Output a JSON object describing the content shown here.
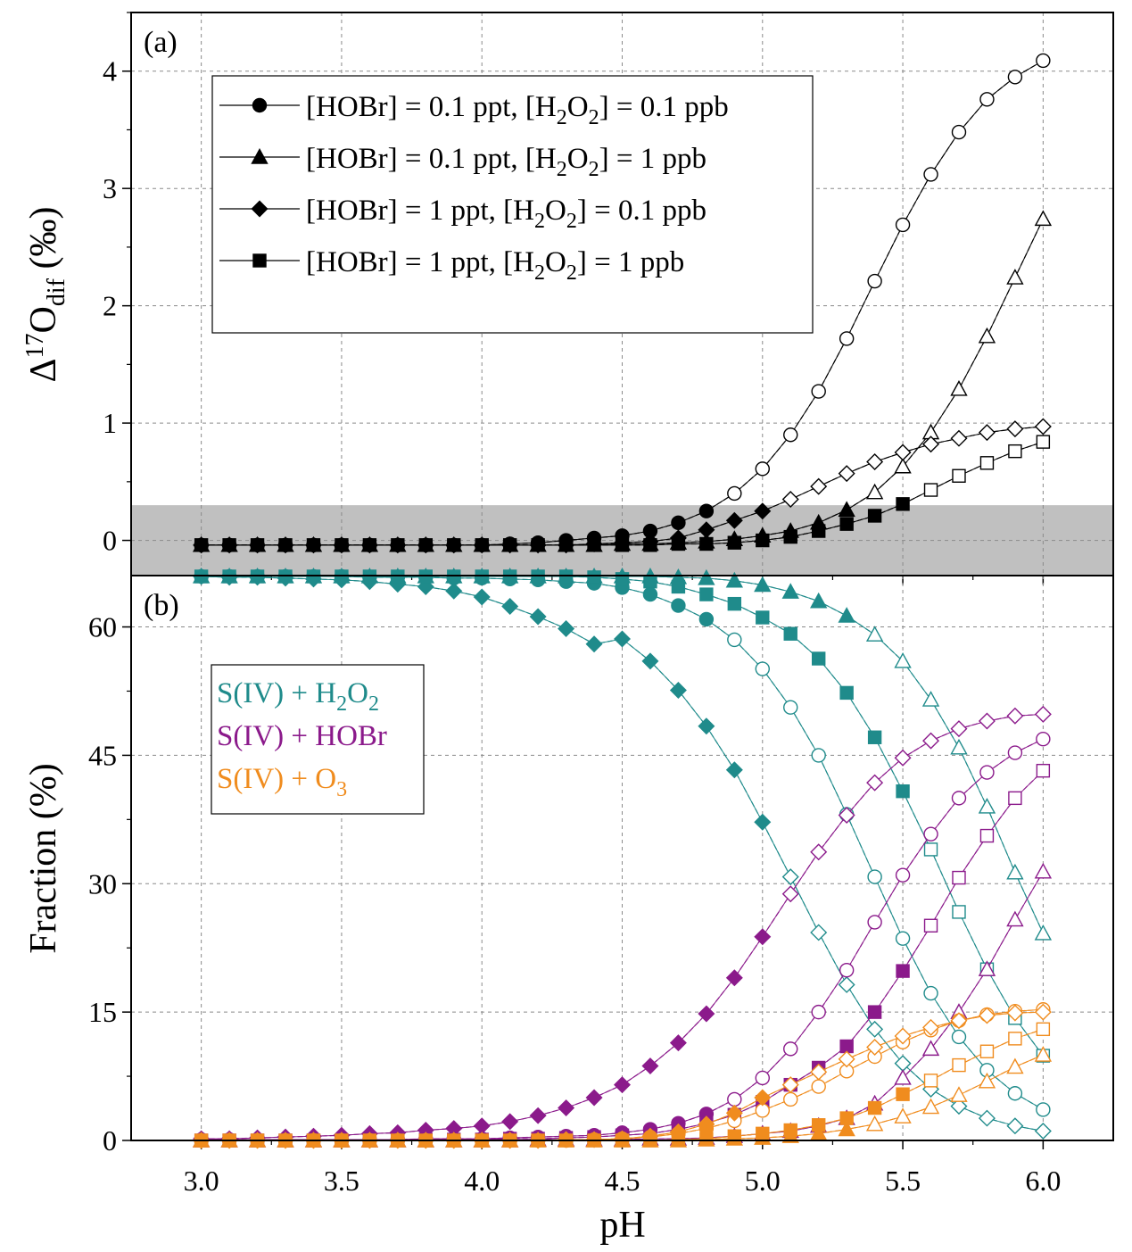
{
  "figure": {
    "x_axis_label": "pH",
    "x_ticks": [
      "3.0",
      "3.5",
      "4.0",
      "4.5",
      "5.0",
      "5.5",
      "6.0"
    ]
  },
  "chart_data": [
    {
      "type": "line",
      "panel_label": "(a)",
      "ylabel": "Δ17Odif (‰)",
      "ylabel_parts": {
        "delta": "Δ",
        "sup": "17",
        "base": "O",
        "sub": "dif",
        "unit": " (‰)"
      },
      "xlim": [
        2.75,
        6.25
      ],
      "ylim": [
        -0.3,
        4.5
      ],
      "x_ticks": [
        3.0,
        3.5,
        4.0,
        4.5,
        5.0,
        5.5,
        6.0
      ],
      "y_ticks": [
        0,
        1,
        2,
        3,
        4
      ],
      "y_tick_labels": [
        "0",
        "1",
        "2",
        "3",
        "4"
      ],
      "grid": true,
      "shaded_band": {
        "y_min": -0.3,
        "y_max": 0.3,
        "color": "#c0c0c0"
      },
      "legend_position": "upper-left",
      "x": [
        3.0,
        3.1,
        3.2,
        3.3,
        3.4,
        3.5,
        3.6,
        3.7,
        3.8,
        3.9,
        4.0,
        4.1,
        4.2,
        4.3,
        4.4,
        4.5,
        4.6,
        4.7,
        4.8,
        4.9,
        5.0,
        5.1,
        5.2,
        5.3,
        5.4,
        5.5,
        5.6,
        5.7,
        5.8,
        5.9,
        6.0
      ],
      "series": [
        {
          "name": "[HOBr] = 0.1 ppt, [H2O2] = 0.1 ppb",
          "legend": [
            "[HOBr] = 0.1 ppt, [H",
            "2",
            "O",
            "2",
            "] = 0.1 ppb"
          ],
          "marker": "circle",
          "filled_up_to_x": 4.8,
          "values": [
            -0.04,
            -0.04,
            -0.04,
            -0.04,
            -0.04,
            -0.04,
            -0.04,
            -0.04,
            -0.04,
            -0.04,
            -0.04,
            -0.03,
            -0.02,
            0.0,
            0.02,
            0.04,
            0.08,
            0.15,
            0.25,
            0.4,
            0.61,
            0.9,
            1.27,
            1.72,
            2.21,
            2.69,
            3.12,
            3.48,
            3.76,
            3.95,
            4.09
          ]
        },
        {
          "name": "[HOBr] = 0.1 ppt, [H2O2] = 1 ppb",
          "legend": [
            "[HOBr] = 0.1 ppt, [H",
            "2",
            "O",
            "2",
            "] = 1 ppb"
          ],
          "marker": "triangle",
          "filled_up_to_x": 5.3,
          "values": [
            -0.04,
            -0.04,
            -0.04,
            -0.04,
            -0.04,
            -0.04,
            -0.04,
            -0.04,
            -0.04,
            -0.04,
            -0.04,
            -0.04,
            -0.04,
            -0.04,
            -0.04,
            -0.03,
            -0.03,
            -0.02,
            -0.01,
            0.01,
            0.04,
            0.08,
            0.15,
            0.26,
            0.41,
            0.63,
            0.92,
            1.29,
            1.74,
            2.24,
            2.74
          ]
        },
        {
          "name": "[HOBr] = 1 ppt, [H2O2] = 0.1 ppb",
          "legend": [
            "[HOBr] = 1 ppt, [H",
            "2",
            "O",
            "2",
            "] = 0.1 ppb"
          ],
          "marker": "diamond",
          "filled_up_to_x": 5.0,
          "values": [
            -0.04,
            -0.04,
            -0.04,
            -0.04,
            -0.04,
            -0.04,
            -0.04,
            -0.04,
            -0.04,
            -0.04,
            -0.04,
            -0.04,
            -0.04,
            -0.04,
            -0.03,
            -0.02,
            -0.01,
            0.02,
            0.09,
            0.17,
            0.25,
            0.35,
            0.46,
            0.57,
            0.67,
            0.75,
            0.82,
            0.87,
            0.92,
            0.95,
            0.97
          ]
        },
        {
          "name": "[HOBr] = 1 ppt, [H2O2] = 1 ppb",
          "legend": [
            "[HOBr] = 1 ppt, [H",
            "2",
            "O",
            "2",
            "] = 1 ppb"
          ],
          "marker": "square",
          "filled_up_to_x": 5.5,
          "values": [
            -0.04,
            -0.04,
            -0.04,
            -0.04,
            -0.04,
            -0.04,
            -0.04,
            -0.04,
            -0.04,
            -0.04,
            -0.04,
            -0.04,
            -0.04,
            -0.04,
            -0.04,
            -0.04,
            -0.04,
            -0.03,
            -0.03,
            -0.02,
            0.0,
            0.03,
            0.08,
            0.14,
            0.21,
            0.31,
            0.43,
            0.55,
            0.66,
            0.76,
            0.84
          ]
        }
      ]
    },
    {
      "type": "line",
      "panel_label": "(b)",
      "ylabel": "Fraction (%)",
      "xlim": [
        2.75,
        6.25
      ],
      "ylim": [
        0,
        66
      ],
      "x_ticks": [
        3.0,
        3.5,
        4.0,
        4.5,
        5.0,
        5.5,
        6.0
      ],
      "y_ticks": [
        0,
        15,
        30,
        45,
        60
      ],
      "y_tick_labels": [
        "0",
        "15",
        "30",
        "45",
        "60"
      ],
      "grid": true,
      "legend_position": "upper-left",
      "legend": [
        {
          "parts": [
            "S(IV) + H",
            "2",
            "O",
            "2",
            ""
          ],
          "color": "#1f8b8b"
        },
        {
          "parts": [
            "S(IV) + HOBr",
            "",
            "",
            "",
            ""
          ],
          "color": "#8b1a8b"
        },
        {
          "parts": [
            "S(IV) + O",
            "3",
            "",
            "",
            ""
          ],
          "color": "#f08c1e"
        }
      ],
      "colors": {
        "H2O2": "#1f8b8b",
        "HOBr": "#8b1a8b",
        "O3": "#f08c1e"
      },
      "x": [
        3.0,
        3.1,
        3.2,
        3.3,
        3.4,
        3.5,
        3.6,
        3.7,
        3.8,
        3.9,
        4.0,
        4.1,
        4.2,
        4.3,
        4.4,
        4.5,
        4.6,
        4.7,
        4.8,
        4.9,
        5.0,
        5.1,
        5.2,
        5.3,
        5.4,
        5.5,
        5.6,
        5.7,
        5.8,
        5.9,
        6.0
      ],
      "series": [
        {
          "name": "S(IV) + H2O2, circle",
          "color": "#1f8b8b",
          "marker": "circle",
          "filled_up_to_x": 4.8,
          "values": [
            65.9,
            65.9,
            65.9,
            65.9,
            65.9,
            65.9,
            65.8,
            65.8,
            65.8,
            65.7,
            65.7,
            65.6,
            65.5,
            65.3,
            65.1,
            64.6,
            63.8,
            62.5,
            60.9,
            58.5,
            55.1,
            50.6,
            45.0,
            38.1,
            30.8,
            23.6,
            17.2,
            12.1,
            8.2,
            5.5,
            3.6
          ]
        },
        {
          "name": "S(IV) + H2O2, triangle",
          "color": "#1f8b8b",
          "marker": "triangle",
          "filled_up_to_x": 5.3,
          "values": [
            65.9,
            65.9,
            65.9,
            65.9,
            65.9,
            65.9,
            65.9,
            65.9,
            65.9,
            65.9,
            65.9,
            65.9,
            65.9,
            65.9,
            65.9,
            65.9,
            65.9,
            65.8,
            65.7,
            65.4,
            64.9,
            64.1,
            63.0,
            61.3,
            59.1,
            56.0,
            51.5,
            45.9,
            39.0,
            31.3,
            24.2
          ]
        },
        {
          "name": "S(IV) + H2O2, diamond",
          "color": "#1f8b8b",
          "marker": "diamond",
          "filled_up_to_x": 5.0,
          "values": [
            65.9,
            65.8,
            65.8,
            65.7,
            65.6,
            65.5,
            65.3,
            65.0,
            64.7,
            64.2,
            63.5,
            62.4,
            61.2,
            59.8,
            58.0,
            58.6,
            56.0,
            52.6,
            48.4,
            43.3,
            37.2,
            30.8,
            24.3,
            18.2,
            13.0,
            9.0,
            6.0,
            4.0,
            2.6,
            1.7,
            1.1
          ]
        },
        {
          "name": "S(IV) + H2O2, square",
          "color": "#1f8b8b",
          "marker": "square",
          "filled_up_to_x": 5.5,
          "values": [
            65.9,
            65.9,
            65.9,
            65.9,
            65.9,
            65.9,
            65.9,
            65.9,
            65.9,
            65.9,
            65.9,
            65.9,
            65.9,
            65.9,
            65.8,
            65.6,
            65.3,
            64.7,
            63.8,
            62.7,
            61.1,
            59.2,
            56.3,
            52.3,
            47.1,
            40.8,
            34.0,
            26.7,
            20.0,
            14.3,
            9.9
          ]
        },
        {
          "name": "S(IV) + HOBr, circle",
          "color": "#8b1a8b",
          "marker": "circle",
          "filled_up_to_x": 4.8,
          "values": [
            0.1,
            0.1,
            0.1,
            0.1,
            0.1,
            0.1,
            0.1,
            0.1,
            0.2,
            0.2,
            0.2,
            0.3,
            0.4,
            0.5,
            0.6,
            0.9,
            1.3,
            2.0,
            3.1,
            4.8,
            7.3,
            10.7,
            15.0,
            19.9,
            25.5,
            31.0,
            35.8,
            40.0,
            43.0,
            45.3,
            46.9
          ]
        },
        {
          "name": "S(IV) + HOBr, triangle",
          "color": "#8b1a8b",
          "marker": "triangle",
          "filled_up_to_x": 5.3,
          "values": [
            0.0,
            0.0,
            0.0,
            0.0,
            0.0,
            0.0,
            0.0,
            0.0,
            0.0,
            0.0,
            0.0,
            0.0,
            0.1,
            0.1,
            0.1,
            0.1,
            0.2,
            0.2,
            0.3,
            0.5,
            0.8,
            1.1,
            1.7,
            2.6,
            4.3,
            7.3,
            10.7,
            15.0,
            20.0,
            25.8,
            31.4
          ]
        },
        {
          "name": "S(IV) + HOBr, diamond",
          "color": "#8b1a8b",
          "marker": "diamond",
          "filled_up_to_x": 5.0,
          "values": [
            0.2,
            0.2,
            0.3,
            0.4,
            0.5,
            0.6,
            0.8,
            0.9,
            1.2,
            1.4,
            1.7,
            2.2,
            2.9,
            3.8,
            5.0,
            6.5,
            8.7,
            11.4,
            14.8,
            19.0,
            23.8,
            28.8,
            33.7,
            38.0,
            41.8,
            44.7,
            46.7,
            48.1,
            49.0,
            49.6,
            49.8
          ]
        },
        {
          "name": "S(IV) + HOBr, square",
          "color": "#8b1a8b",
          "marker": "square",
          "filled_up_to_x": 5.5,
          "values": [
            0.0,
            0.0,
            0.0,
            0.0,
            0.0,
            0.0,
            0.0,
            0.1,
            0.1,
            0.1,
            0.1,
            0.2,
            0.2,
            0.3,
            0.4,
            0.6,
            0.8,
            1.3,
            2.0,
            3.0,
            4.5,
            6.5,
            8.5,
            11.0,
            15.0,
            19.8,
            25.1,
            30.7,
            35.6,
            40.0,
            43.2
          ]
        },
        {
          "name": "S(IV) + O3, circle",
          "color": "#f08c1e",
          "marker": "circle",
          "filled_up_to_x": 4.8,
          "values": [
            0.0,
            0.0,
            0.0,
            0.0,
            0.0,
            0.0,
            0.0,
            0.0,
            0.0,
            0.0,
            0.0,
            0.0,
            0.0,
            0.0,
            0.1,
            0.2,
            0.4,
            0.8,
            1.4,
            2.3,
            3.5,
            4.8,
            6.3,
            8.1,
            9.8,
            11.5,
            12.9,
            14.0,
            14.7,
            15.1,
            15.3
          ]
        },
        {
          "name": "S(IV) + O3, triangle",
          "color": "#f08c1e",
          "marker": "triangle",
          "filled_up_to_x": 5.3,
          "values": [
            0.0,
            0.0,
            0.0,
            0.0,
            0.0,
            0.0,
            0.0,
            0.0,
            0.0,
            0.0,
            0.0,
            0.0,
            0.0,
            0.0,
            0.0,
            0.0,
            0.0,
            0.0,
            0.1,
            0.2,
            0.3,
            0.5,
            0.8,
            1.3,
            1.9,
            2.8,
            3.9,
            5.3,
            6.9,
            8.6,
            10.0
          ]
        },
        {
          "name": "S(IV) + O3, diamond",
          "color": "#f08c1e",
          "marker": "diamond",
          "filled_up_to_x": 5.0,
          "values": [
            0.0,
            0.0,
            0.0,
            0.0,
            0.0,
            0.0,
            0.0,
            0.0,
            0.0,
            0.0,
            0.0,
            0.0,
            0.0,
            0.1,
            0.1,
            0.2,
            0.5,
            1.0,
            1.9,
            3.2,
            5.0,
            6.5,
            8.0,
            9.5,
            10.9,
            12.2,
            13.2,
            14.0,
            14.6,
            14.9,
            15.0
          ]
        },
        {
          "name": "S(IV) + O3, square",
          "color": "#f08c1e",
          "marker": "square",
          "filled_up_to_x": 5.5,
          "values": [
            0.0,
            0.0,
            0.0,
            0.0,
            0.0,
            0.0,
            0.0,
            0.0,
            0.0,
            0.0,
            0.0,
            0.0,
            0.0,
            0.0,
            0.0,
            0.0,
            0.0,
            0.1,
            0.2,
            0.5,
            0.8,
            1.2,
            1.8,
            2.6,
            3.8,
            5.4,
            7.0,
            8.8,
            10.4,
            11.9,
            13.0
          ]
        }
      ]
    }
  ]
}
